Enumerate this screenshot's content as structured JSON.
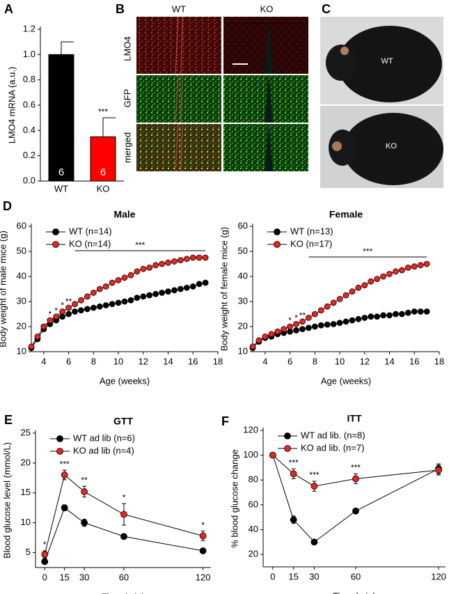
{
  "panel_labels": [
    "A",
    "B",
    "C",
    "D",
    "E",
    "F"
  ],
  "panel_b": {
    "columns": [
      "WT",
      "KO"
    ],
    "rows": [
      "LMO4",
      "GFP",
      "merged"
    ]
  },
  "panel_c": {
    "labels": [
      "WT",
      "KO"
    ]
  },
  "chart_data": [
    {
      "type": "bar",
      "ylabel": "LMO4 mRNA (a.u.)",
      "categories": [
        "WT",
        "KO"
      ],
      "values": [
        1.0,
        0.35
      ],
      "errors": [
        0.1,
        0.15
      ],
      "colors": [
        "#000000",
        "#ff0000"
      ],
      "bar_labels": [
        "6",
        "6"
      ],
      "significance": [
        null,
        "***"
      ],
      "ylim": [
        0,
        1.2
      ],
      "yticks": [
        {
          "value": 0,
          "label": "0.0"
        },
        0.2,
        0.4,
        0.6,
        0.8,
        {
          "value": 1,
          "label": "1.0"
        },
        1.2
      ]
    },
    {
      "type": "line",
      "title": "Male",
      "xlabel": "Age (weeks)",
      "ylabel": "Body weight of male mice (g)",
      "legend": "upper left",
      "x": [
        3,
        3.5,
        4,
        4.5,
        5,
        5.5,
        6,
        6.5,
        7,
        7.5,
        8,
        8.5,
        9,
        9.5,
        10,
        10.5,
        11,
        11.5,
        12,
        12.5,
        13,
        13.5,
        14,
        14.5,
        15,
        15.5,
        16,
        16.5,
        17
      ],
      "series": [
        {
          "name": "WT (n=14)",
          "color": "#000000",
          "values": [
            11.5,
            15,
            19,
            21,
            22.5,
            24,
            25,
            26,
            26.5,
            27,
            27.5,
            28,
            28.5,
            29,
            29.5,
            30,
            30.5,
            31.5,
            32,
            32.5,
            33,
            33.5,
            34,
            34.5,
            35,
            35.5,
            36,
            37,
            37.5
          ]
        },
        {
          "name": "KO (n=14)",
          "color": "#e8251f",
          "values": [
            12,
            16,
            20,
            22.5,
            24,
            26,
            27.5,
            29,
            30.5,
            32,
            33.5,
            35,
            36,
            37.5,
            38.5,
            39.5,
            40.5,
            42,
            43,
            43.5,
            44.5,
            45,
            45.5,
            46,
            46.5,
            47,
            47.5,
            47.5,
            47.5
          ]
        }
      ],
      "significance": [
        null,
        null,
        null,
        "*",
        "*",
        "*",
        "**",
        null,
        null,
        null,
        null,
        null,
        null,
        null,
        null,
        null,
        null,
        null,
        null,
        null,
        null,
        null,
        null,
        null,
        null,
        null,
        null,
        null,
        null
      ],
      "significance_span": {
        "text": "***",
        "x": [
          6.5,
          17
        ]
      },
      "xlim": [
        3,
        18
      ],
      "xticks": [
        4,
        6,
        8,
        10,
        12,
        14,
        16,
        18
      ],
      "ylim": [
        10,
        60
      ],
      "yticks": [
        10,
        20,
        30,
        40,
        50,
        60
      ]
    },
    {
      "type": "line",
      "title": "Female",
      "xlabel": "Age (weeks)",
      "ylabel": "Body weight of female mice (g)",
      "legend": "upper left",
      "x": [
        3,
        3.5,
        4,
        4.5,
        5,
        5.5,
        6,
        6.5,
        7,
        7.5,
        8,
        8.5,
        9,
        9.5,
        10,
        10.5,
        11,
        11.5,
        12,
        12.5,
        13,
        13.5,
        14,
        14.5,
        15,
        15.5,
        16,
        16.5,
        17
      ],
      "series": [
        {
          "name": "WT (n=13)",
          "color": "#000000",
          "values": [
            11.5,
            14,
            15.5,
            16,
            17,
            17.5,
            18,
            18.5,
            19,
            19.5,
            20,
            20.5,
            20.8,
            21,
            21.5,
            22,
            22.5,
            23,
            23.5,
            24,
            24,
            24.5,
            24.5,
            25,
            25,
            25.5,
            26,
            26,
            26
          ]
        },
        {
          "name": "KO (n=17)",
          "color": "#e8251f",
          "values": [
            12,
            14.5,
            16,
            17,
            18,
            19,
            20,
            21,
            22,
            23.5,
            25,
            26.5,
            28,
            29.5,
            31,
            32.5,
            34,
            35.5,
            36.5,
            38,
            39,
            40,
            41,
            42,
            42.5,
            43.5,
            44,
            44.5,
            45
          ]
        }
      ],
      "significance": [
        null,
        null,
        null,
        null,
        null,
        null,
        "*",
        "*",
        "**",
        null,
        null,
        null,
        null,
        null,
        null,
        null,
        null,
        null,
        null,
        null,
        null,
        null,
        null,
        null,
        null,
        null,
        null,
        null,
        null
      ],
      "significance_span": {
        "text": "***",
        "x": [
          7.5,
          17
        ]
      },
      "xlim": [
        3,
        18
      ],
      "xticks": [
        4,
        6,
        8,
        10,
        12,
        14,
        16,
        18
      ],
      "ylim": [
        10,
        60
      ],
      "yticks": [
        10,
        20,
        30,
        40,
        50,
        60
      ]
    },
    {
      "type": "line",
      "title": "GTT",
      "xlabel": "Time (min)",
      "ylabel": "Blood glucose level (mmol/L)",
      "legend": "upper left",
      "x": [
        0,
        15,
        30,
        60,
        120
      ],
      "series": [
        {
          "name": "WT ad lib (n=6)",
          "color": "#000000",
          "values": [
            3.5,
            12.5,
            10,
            7.7,
            5.3
          ],
          "errors": [
            0.3,
            0.5,
            0.6,
            0.4,
            0.3
          ]
        },
        {
          "name": "KO ad lib (n=4)",
          "color": "#e8251f",
          "values": [
            4.7,
            18,
            15.2,
            11.4,
            7.8
          ],
          "errors": [
            0.6,
            0.8,
            0.9,
            1.8,
            0.8
          ]
        }
      ],
      "significance": [
        "*",
        "***",
        "**",
        "*",
        "*"
      ],
      "xlim": [
        -7,
        126
      ],
      "xticks": [
        0,
        15,
        30,
        60,
        120
      ],
      "ylim": [
        2.5,
        25
      ],
      "yticks": [
        5,
        10,
        15,
        20,
        25
      ]
    },
    {
      "type": "line",
      "title": "ITT",
      "xlabel": "Time (min)",
      "ylabel": "% blood glucose change",
      "legend": "upper left",
      "x": [
        0,
        15,
        30,
        60,
        120
      ],
      "series": [
        {
          "name": "WT ad lib. (n=8)",
          "color": "#000000",
          "values": [
            100,
            48,
            30,
            55,
            89
          ],
          "errors": [
            0,
            3,
            1.5,
            1.5,
            4
          ]
        },
        {
          "name": "KO ad lib. (n=7)",
          "color": "#e8251f",
          "values": [
            100,
            85,
            75,
            81,
            88
          ],
          "errors": [
            0,
            4,
            4,
            4,
            4
          ]
        }
      ],
      "significance": [
        null,
        "***",
        "***",
        "***",
        null
      ],
      "xlim": [
        -7,
        125
      ],
      "xticks": [
        0,
        15,
        30,
        60,
        120
      ],
      "ylim": [
        10,
        120
      ],
      "yticks": [
        20,
        40,
        60,
        80,
        100,
        120
      ]
    }
  ]
}
